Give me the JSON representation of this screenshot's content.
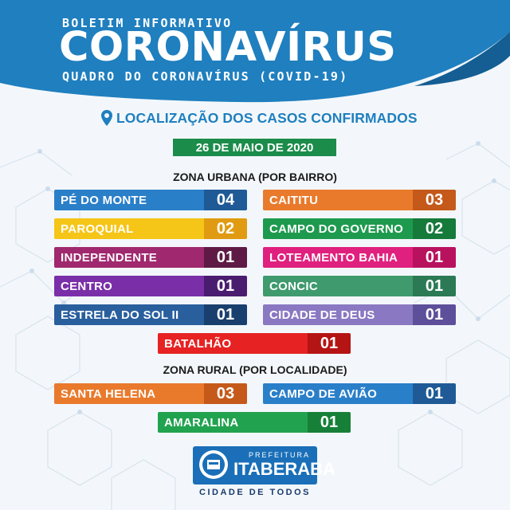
{
  "header": {
    "kicker": "BOLETIM INFORMATIVO",
    "title": "CORONAVÍRUS",
    "subtitle": "QUADRO DO CORONAVÍRUS (COVID-19)",
    "color": "#1f7fbf"
  },
  "location_title": "LOCALIZAÇÃO DOS CASOS CONFIRMADOS",
  "date": "26 DE MAIO DE 2020",
  "urban": {
    "title": "ZONA URBANA (POR BAIRRO)",
    "items": [
      {
        "name": "PÉ DO MONTE",
        "count": "04",
        "color": "#2a7fc9",
        "dark": "#1f5a96"
      },
      {
        "name": "CAITITU",
        "count": "03",
        "color": "#e97a2c",
        "dark": "#c5591a"
      },
      {
        "name": "PAROQUIAL",
        "count": "02",
        "color": "#f5c518",
        "dark": "#e09b12"
      },
      {
        "name": "CAMPO DO GOVERNO",
        "count": "02",
        "color": "#1e9a4e",
        "dark": "#167a3b"
      },
      {
        "name": "INDEPENDENTE",
        "count": "01",
        "color": "#a0286e",
        "dark": "#5e1a45"
      },
      {
        "name": "LOTEAMENTO BAHIA",
        "count": "01",
        "color": "#e0207e",
        "dark": "#b8125f"
      },
      {
        "name": "CENTRO",
        "count": "01",
        "color": "#7a2fa8",
        "dark": "#4a1c70"
      },
      {
        "name": "CONCIC",
        "count": "01",
        "color": "#3f9a6e",
        "dark": "#2b7a55"
      },
      {
        "name": "ESTRELA DO SOL II",
        "count": "01",
        "color": "#2a5f9e",
        "dark": "#193f6e"
      },
      {
        "name": "CIDADE DE DEUS",
        "count": "01",
        "color": "#8a78c2",
        "dark": "#5e4f9a"
      },
      {
        "name": "BATALHÃO",
        "count": "01",
        "color": "#e62222",
        "dark": "#b51414"
      }
    ]
  },
  "rural": {
    "title": "ZONA RURAL (POR LOCALIDADE)",
    "items": [
      {
        "name": "SANTA HELENA",
        "count": "03",
        "color": "#e97a2c",
        "dark": "#c5591a"
      },
      {
        "name": "CAMPO DE AVIÃO",
        "count": "01",
        "color": "#2a7fc9",
        "dark": "#1f5a96"
      },
      {
        "name": "AMARALINA",
        "count": "01",
        "color": "#21a24f",
        "dark": "#178038"
      }
    ]
  },
  "footer": {
    "prefix": "PREFEITURA",
    "name": "ITABERABA",
    "tagline": "CIDADE DE TODOS",
    "seal_name": "seal-icon"
  }
}
